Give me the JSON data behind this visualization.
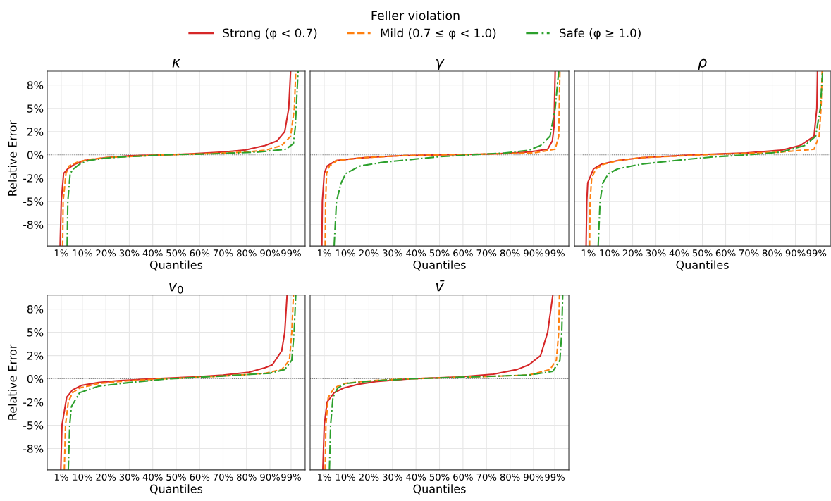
{
  "chart_data": [
    {
      "type": "line",
      "title": "κ",
      "xlabel": "Quantiles",
      "ylabel": "Relative Error",
      "legend": "top",
      "legend_title": "Feller violation",
      "grid": true,
      "xlim": [
        -5,
        105
      ],
      "xticks": [
        {
          "value": 1,
          "label": "1%"
        },
        {
          "value": 10,
          "label": "10%"
        },
        {
          "value": 20,
          "label": "20%"
        },
        {
          "value": 30,
          "label": "30%"
        },
        {
          "value": 40,
          "label": "40%"
        },
        {
          "value": 50,
          "label": "50%"
        },
        {
          "value": 60,
          "label": "60%"
        },
        {
          "value": 70,
          "label": "70%"
        },
        {
          "value": 80,
          "label": "80%"
        },
        {
          "value": 90,
          "label": "90%"
        },
        {
          "value": 99,
          "label": "99%"
        }
      ],
      "ylim": [
        -9.8,
        9.0
      ],
      "yticks": [
        {
          "value": -7.5,
          "label": "-8%"
        },
        {
          "value": -5,
          "label": "-5%"
        },
        {
          "value": -2.5,
          "label": "-2%"
        },
        {
          "value": 0,
          "label": "0%"
        },
        {
          "value": 2.5,
          "label": "2%"
        },
        {
          "value": 5,
          "label": "5%"
        },
        {
          "value": 7.5,
          "label": "8%"
        }
      ],
      "ref_lines": [
        {
          "axis": "y",
          "value": 0,
          "color": "#808080",
          "line_style": "dotted"
        }
      ],
      "series": [
        {
          "name": "Strong (φ < 0.7)",
          "color": "#d62728",
          "line_style": "solid",
          "x": [
            0.5,
            1.0,
            2.0,
            3.8,
            6.8,
            10.8,
            20,
            30,
            45,
            55,
            70,
            79,
            88,
            93,
            96.3,
            98,
            98.8
          ],
          "values": [
            -9.8,
            -5,
            -2,
            -1.5,
            -1,
            -0.6,
            -0.3,
            -0.1,
            0,
            0.1,
            0.3,
            0.5,
            1.0,
            1.5,
            2.5,
            5,
            9
          ]
        },
        {
          "name": "Mild (0.7 ≤ φ < 1.0)",
          "color": "#ff7f0e",
          "line_style": "dashed",
          "x": [
            1.6,
            1.8,
            3.0,
            4.3,
            7.8,
            12.8,
            20,
            45,
            60,
            80,
            88,
            95,
            98.8,
            100.4,
            101
          ],
          "values": [
            -9.8,
            -5,
            -2,
            -1.2,
            -0.8,
            -0.5,
            -0.3,
            0,
            0.1,
            0.3,
            0.5,
            1.0,
            2,
            5,
            9
          ]
        },
        {
          "name": "Safe (φ ≥ 1.0)",
          "color": "#2ca02c",
          "line_style": "dashdot",
          "x": [
            3.5,
            3.8,
            4.8,
            6.3,
            8.8,
            12.8,
            22,
            45,
            65,
            85,
            96.8,
            100,
            100.8,
            102
          ],
          "values": [
            -9.8,
            -5,
            -2,
            -1.5,
            -1,
            -0.6,
            -0.3,
            0,
            0.1,
            0.3,
            0.6,
            1.2,
            3,
            9
          ]
        }
      ]
    },
    {
      "type": "line",
      "title": "γ",
      "xlabel": "Quantiles",
      "tick_labels": "x",
      "grid": true,
      "xlim": [
        -5,
        105
      ],
      "xticks": [
        {
          "value": 1,
          "label": "1%"
        },
        {
          "value": 10,
          "label": "10%"
        },
        {
          "value": 20,
          "label": "20%"
        },
        {
          "value": 30,
          "label": "30%"
        },
        {
          "value": 40,
          "label": "40%"
        },
        {
          "value": 50,
          "label": "50%"
        },
        {
          "value": 60,
          "label": "60%"
        },
        {
          "value": 70,
          "label": "70%"
        },
        {
          "value": 80,
          "label": "80%"
        },
        {
          "value": 90,
          "label": "90%"
        },
        {
          "value": 99,
          "label": "99%"
        }
      ],
      "ylim": [
        -9.8,
        9.0
      ],
      "yticks": [
        {
          "value": -7.5,
          "label": null
        },
        {
          "value": -5,
          "label": null
        },
        {
          "value": -2.5,
          "label": null
        },
        {
          "value": 0,
          "label": null
        },
        {
          "value": 2.5,
          "label": null
        },
        {
          "value": 5,
          "label": null
        },
        {
          "value": 7.5,
          "label": null
        }
      ],
      "ref_lines": [
        {
          "axis": "y",
          "value": 0,
          "color": "#808080",
          "line_style": "dotted"
        }
      ],
      "series": [
        {
          "color": "#d62728",
          "line_style": "solid",
          "x": [
            0,
            0.2,
            1.0,
            2.2,
            6.2,
            18,
            33,
            50,
            73,
            88,
            96,
            98,
            98.7,
            99.2
          ],
          "values": [
            -9.8,
            -5,
            -2,
            -1.2,
            -0.6,
            -0.3,
            -0.1,
            0,
            0.1,
            0.3,
            0.6,
            1.5,
            3,
            9
          ]
        },
        {
          "color": "#ff7f0e",
          "line_style": "dashed",
          "x": [
            1.4,
            1.6,
            2.0,
            3.2,
            6.5,
            18,
            33,
            50,
            73,
            90,
            99.2,
            100.7,
            101.2
          ],
          "values": [
            -9.8,
            -5,
            -2,
            -1.2,
            -0.6,
            -0.3,
            -0.1,
            0,
            0.1,
            0.2,
            0.6,
            2,
            9
          ]
        },
        {
          "color": "#2ca02c",
          "line_style": "dashdot",
          "x": [
            5.2,
            6.2,
            8.2,
            10.2,
            16.2,
            26,
            38,
            50,
            63,
            78,
            88,
            93,
            97,
            99.2,
            100.7
          ],
          "values": [
            -9.8,
            -5,
            -3,
            -2,
            -1.2,
            -0.8,
            -0.5,
            -0.2,
            0,
            0.2,
            0.5,
            1,
            2,
            5,
            9
          ]
        }
      ]
    },
    {
      "type": "line",
      "title": "ρ",
      "xlabel": "Quantiles",
      "tick_labels": "x",
      "grid": true,
      "xlim": [
        -5,
        105
      ],
      "xticks": [
        {
          "value": 1,
          "label": "1%"
        },
        {
          "value": 10,
          "label": "10%"
        },
        {
          "value": 20,
          "label": "20%"
        },
        {
          "value": 30,
          "label": "30%"
        },
        {
          "value": 40,
          "label": "40%"
        },
        {
          "value": 50,
          "label": "50%"
        },
        {
          "value": 60,
          "label": "60%"
        },
        {
          "value": 70,
          "label": "70%"
        },
        {
          "value": 80,
          "label": "80%"
        },
        {
          "value": 90,
          "label": "90%"
        },
        {
          "value": 99,
          "label": "99%"
        }
      ],
      "ylim": [
        -9.8,
        9.0
      ],
      "yticks": [
        {
          "value": -7.5,
          "label": null
        },
        {
          "value": -5,
          "label": null
        },
        {
          "value": -2.5,
          "label": null
        },
        {
          "value": 0,
          "label": null
        },
        {
          "value": 2.5,
          "label": null
        },
        {
          "value": 5,
          "label": null
        },
        {
          "value": 7.5,
          "label": null
        }
      ],
      "ref_lines": [
        {
          "axis": "y",
          "value": 0,
          "color": "#808080",
          "line_style": "dotted"
        }
      ],
      "series": [
        {
          "color": "#d62728",
          "line_style": "solid",
          "x": [
            0,
            0.3,
            0.7,
            3.2,
            6.7,
            13.7,
            24,
            46,
            69,
            84,
            92,
            98,
            99.2,
            99.5
          ],
          "values": [
            -9.8,
            -5,
            -3,
            -1.5,
            -1,
            -0.6,
            -0.3,
            0,
            0.2,
            0.5,
            1,
            2,
            5,
            9
          ]
        },
        {
          "color": "#ff7f0e",
          "line_style": "dashed",
          "x": [
            1.5,
            1.7,
            2.4,
            4.2,
            7.7,
            14,
            24,
            50,
            84,
            98,
            100.2,
            101,
            101.5
          ],
          "values": [
            -9.8,
            -5,
            -2.5,
            -1.5,
            -1,
            -0.6,
            -0.3,
            0,
            0.3,
            0.6,
            2,
            5,
            9
          ]
        },
        {
          "color": "#2ca02c",
          "line_style": "dashdot",
          "x": [
            5.2,
            6,
            7.2,
            9.7,
            13.7,
            23.7,
            38.7,
            55.7,
            69.7,
            84,
            94,
            98.7,
            100.7,
            101.7
          ],
          "values": [
            -9.8,
            -5,
            -3,
            -2,
            -1.5,
            -1,
            -0.6,
            -0.2,
            0,
            0.3,
            1,
            2,
            5,
            9
          ]
        }
      ]
    },
    {
      "type": "line",
      "title": "v$_{0}$",
      "xlabel": "Quantiles",
      "ylabel": "Relative Error",
      "grid": true,
      "xlim": [
        -5,
        105
      ],
      "xticks": [
        {
          "value": 1,
          "label": "1%"
        },
        {
          "value": 10,
          "label": "10%"
        },
        {
          "value": 20,
          "label": "20%"
        },
        {
          "value": 30,
          "label": "30%"
        },
        {
          "value": 40,
          "label": "40%"
        },
        {
          "value": 50,
          "label": "50%"
        },
        {
          "value": 60,
          "label": "60%"
        },
        {
          "value": 70,
          "label": "70%"
        },
        {
          "value": 80,
          "label": "80%"
        },
        {
          "value": 90,
          "label": "90%"
        },
        {
          "value": 99,
          "label": "99%"
        }
      ],
      "ylim": [
        -9.8,
        9.0
      ],
      "yticks": [
        {
          "value": -7.5,
          "label": "-8%"
        },
        {
          "value": -5,
          "label": "-5%"
        },
        {
          "value": -2.5,
          "label": "-2%"
        },
        {
          "value": 0,
          "label": "0%"
        },
        {
          "value": 2.5,
          "label": "2%"
        },
        {
          "value": 5,
          "label": "5%"
        },
        {
          "value": 7.5,
          "label": "8%"
        }
      ],
      "ref_lines": [
        {
          "axis": "y",
          "value": 0,
          "color": "#808080",
          "line_style": "dotted"
        }
      ],
      "series": [
        {
          "color": "#d62728",
          "line_style": "solid",
          "x": [
            0.8,
            1.3,
            3.3,
            5.8,
            9.8,
            16.8,
            25,
            40,
            57,
            70,
            81,
            88,
            91,
            95,
            96.3,
            97.3
          ],
          "values": [
            -9.8,
            -5,
            -2,
            -1.2,
            -0.7,
            -0.4,
            -0.2,
            0,
            0.2,
            0.4,
            0.7,
            1.2,
            1.5,
            3,
            5,
            9
          ]
        },
        {
          "color": "#ff7f0e",
          "line_style": "dashed",
          "x": [
            2.3,
            2.8,
            4,
            5.8,
            8.8,
            16.8,
            30,
            45,
            70,
            88,
            95,
            98.3,
            99.3,
            100
          ],
          "values": [
            -9.8,
            -5,
            -2.5,
            -1.5,
            -1,
            -0.5,
            -0.2,
            0,
            0.3,
            0.6,
            1,
            2,
            5,
            9
          ]
        },
        {
          "color": "#2ca02c",
          "line_style": "dashdot",
          "x": [
            4,
            4.6,
            5.3,
            8.8,
            16.8,
            30,
            47,
            70,
            90,
            96.3,
            99.3,
            100.3,
            101
          ],
          "values": [
            -9.8,
            -5,
            -3,
            -1.5,
            -0.8,
            -0.4,
            0,
            0.3,
            0.6,
            1,
            2,
            5,
            9
          ]
        }
      ]
    },
    {
      "type": "line",
      "title": "v̄",
      "xlabel": "Quantiles",
      "tick_labels": "x",
      "grid": true,
      "xlim": [
        -5,
        105
      ],
      "xticks": [
        {
          "value": 1,
          "label": "1%"
        },
        {
          "value": 10,
          "label": "10%"
        },
        {
          "value": 20,
          "label": "20%"
        },
        {
          "value": 30,
          "label": "30%"
        },
        {
          "value": 40,
          "label": "40%"
        },
        {
          "value": 50,
          "label": "50%"
        },
        {
          "value": 60,
          "label": "60%"
        },
        {
          "value": 70,
          "label": "70%"
        },
        {
          "value": 80,
          "label": "80%"
        },
        {
          "value": 90,
          "label": "90%"
        },
        {
          "value": 99,
          "label": "99%"
        }
      ],
      "ylim": [
        -9.8,
        9.0
      ],
      "yticks": [
        {
          "value": -7.5,
          "label": null
        },
        {
          "value": -5,
          "label": null
        },
        {
          "value": -2.5,
          "label": null
        },
        {
          "value": 0,
          "label": null
        },
        {
          "value": 2.5,
          "label": null
        },
        {
          "value": 5,
          "label": null
        },
        {
          "value": 7.5,
          "label": null
        }
      ],
      "ref_lines": [
        {
          "axis": "y",
          "value": 0,
          "color": "#808080",
          "line_style": "dotted"
        }
      ],
      "series": [
        {
          "color": "#d62728",
          "line_style": "solid",
          "x": [
            0.4,
            1,
            2.2,
            5.2,
            9.2,
            15.2,
            23,
            38,
            58,
            73,
            83,
            88,
            93,
            96,
            98.2
          ],
          "values": [
            -9.8,
            -5,
            -2.5,
            -1.5,
            -1,
            -0.6,
            -0.3,
            0,
            0.2,
            0.5,
            1,
            1.5,
            2.5,
            5,
            9
          ]
        },
        {
          "color": "#ff7f0e",
          "line_style": "dashed",
          "x": [
            1.4,
            1.7,
            2.7,
            5.2,
            9.2,
            21,
            36,
            63,
            88,
            97,
            99.7,
            100.7,
            101
          ],
          "values": [
            -9.8,
            -5,
            -2,
            -1,
            -0.5,
            -0.2,
            0,
            0.2,
            0.4,
            1,
            2,
            5,
            9
          ]
        },
        {
          "color": "#2ca02c",
          "line_style": "dashdot",
          "x": [
            3.2,
            3.7,
            4.7,
            6.7,
            10.2,
            23,
            38,
            63,
            88,
            98.2,
            101.2,
            102,
            102.4
          ],
          "values": [
            -9.8,
            -5,
            -2,
            -1,
            -0.5,
            -0.2,
            0,
            0.2,
            0.4,
            0.8,
            2,
            5,
            9
          ]
        }
      ]
    }
  ]
}
